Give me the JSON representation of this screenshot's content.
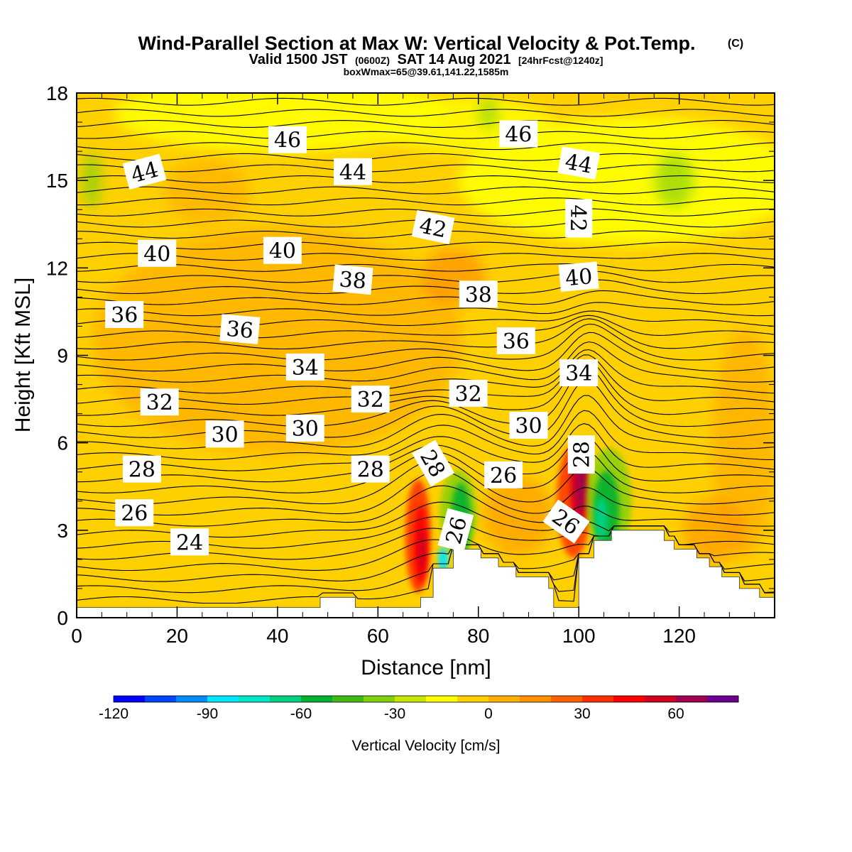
{
  "header": {
    "title": "Wind-Parallel Section at Max W: Vertical Velocity & Pot.Temp.",
    "copyright": "(C)",
    "valid_line": "Valid 1500 JST",
    "valid_zulu": "(0600Z)",
    "valid_date": "SAT 14 Aug 2021",
    "forecast_info": "[24hrFcst@1240z]",
    "box_info": "boxWmax=65@39.61,141.22,1585m"
  },
  "chart_data": {
    "type": "heatmap",
    "xlabel": "Distance [nm]",
    "ylabel": "Height [Kft MSL]",
    "xlim": [
      0,
      139
    ],
    "ylim": [
      0,
      18
    ],
    "x_ticks": [
      0,
      20,
      40,
      60,
      80,
      100,
      120
    ],
    "y_ticks": [
      0,
      3,
      6,
      9,
      12,
      15,
      18
    ],
    "colorbar": {
      "title": "Vertical Velocity [cm/s]",
      "range": [
        -120,
        80
      ],
      "step": 10,
      "tick_values": [
        -120,
        -90,
        -60,
        -30,
        0,
        30,
        60
      ],
      "colors": [
        "#0000ff",
        "#0044ff",
        "#0088ff",
        "#00e6ff",
        "#00e6c8",
        "#00d080",
        "#00b030",
        "#40b818",
        "#80d010",
        "#c8e600",
        "#ffff00",
        "#ffd000",
        "#ffb000",
        "#ff9000",
        "#ff6000",
        "#ff3000",
        "#ff0000",
        "#d00020",
        "#a00050",
        "#6a0090"
      ]
    },
    "field_color_index": {
      "background": 11,
      "upper_level": 10,
      "warm_pockets": 12,
      "upslope_max": 18,
      "downslope_min": 5
    },
    "isentropes": {
      "variable": "Pot.Temp.",
      "label_values": [
        24,
        26,
        28,
        30,
        32,
        34,
        36,
        38,
        40,
        42,
        44,
        46
      ]
    },
    "contour_labels": [
      {
        "text": "46",
        "x": 42,
        "y": 16.4,
        "rotate": 0
      },
      {
        "text": "46",
        "x": 88,
        "y": 16.6,
        "rotate": 0
      },
      {
        "text": "44",
        "x": 13.5,
        "y": 15.3,
        "rotate": -15
      },
      {
        "text": "44",
        "x": 55,
        "y": 15.3,
        "rotate": 0
      },
      {
        "text": "44",
        "x": 100,
        "y": 15.6,
        "rotate": 10
      },
      {
        "text": "42",
        "x": 71,
        "y": 13.4,
        "rotate": 12
      },
      {
        "text": "42",
        "x": 100,
        "y": 13.7,
        "rotate": 90
      },
      {
        "text": "40",
        "x": 16,
        "y": 12.5,
        "rotate": 0
      },
      {
        "text": "40",
        "x": 41,
        "y": 12.6,
        "rotate": 0
      },
      {
        "text": "40",
        "x": 100,
        "y": 11.7,
        "rotate": -5
      },
      {
        "text": "38",
        "x": 55,
        "y": 11.6,
        "rotate": 5
      },
      {
        "text": "38",
        "x": 80,
        "y": 11.1,
        "rotate": 0
      },
      {
        "text": "36",
        "x": 9.5,
        "y": 10.4,
        "rotate": 0
      },
      {
        "text": "36",
        "x": 32.5,
        "y": 9.9,
        "rotate": 5
      },
      {
        "text": "36",
        "x": 87.5,
        "y": 9.5,
        "rotate": 0
      },
      {
        "text": "34",
        "x": 45.5,
        "y": 8.6,
        "rotate": 0
      },
      {
        "text": "34",
        "x": 100,
        "y": 8.4,
        "rotate": 0
      },
      {
        "text": "32",
        "x": 16.5,
        "y": 7.4,
        "rotate": 0
      },
      {
        "text": "32",
        "x": 58.5,
        "y": 7.5,
        "rotate": 0
      },
      {
        "text": "32",
        "x": 78,
        "y": 7.7,
        "rotate": 0
      },
      {
        "text": "30",
        "x": 29.5,
        "y": 6.3,
        "rotate": 0
      },
      {
        "text": "30",
        "x": 45.5,
        "y": 6.5,
        "rotate": 0
      },
      {
        "text": "30",
        "x": 90,
        "y": 6.6,
        "rotate": 0
      },
      {
        "text": "28",
        "x": 13,
        "y": 5.1,
        "rotate": 0
      },
      {
        "text": "28",
        "x": 58.5,
        "y": 5.1,
        "rotate": 0
      },
      {
        "text": "28",
        "x": 71,
        "y": 5.3,
        "rotate": 60
      },
      {
        "text": "28",
        "x": 100.5,
        "y": 5.6,
        "rotate": -90
      },
      {
        "text": "26",
        "x": 11.5,
        "y": 3.6,
        "rotate": 0
      },
      {
        "text": "26",
        "x": 85,
        "y": 4.9,
        "rotate": 0
      },
      {
        "text": "26",
        "x": 75.5,
        "y": 3.0,
        "rotate": -75
      },
      {
        "text": "26",
        "x": 97.5,
        "y": 3.3,
        "rotate": 35
      },
      {
        "text": "24",
        "x": 22.5,
        "y": 2.6,
        "rotate": 0
      }
    ],
    "terrain": [
      [
        0,
        0.35
      ],
      [
        48.5,
        0.35
      ],
      [
        48.5,
        0.7
      ],
      [
        55.5,
        0.7
      ],
      [
        55.5,
        0.35
      ],
      [
        68.5,
        0.35
      ],
      [
        68.5,
        0.7
      ],
      [
        71,
        0.7
      ],
      [
        71,
        1.7
      ],
      [
        75,
        1.7
      ],
      [
        75,
        2.35
      ],
      [
        80.5,
        2.35
      ],
      [
        80.5,
        2.05
      ],
      [
        84,
        2.05
      ],
      [
        84,
        1.75
      ],
      [
        87.5,
        1.75
      ],
      [
        87.5,
        1.4
      ],
      [
        94,
        1.4
      ],
      [
        94,
        1.0
      ],
      [
        95,
        1.0
      ],
      [
        95,
        0.35
      ],
      [
        100,
        0.35
      ],
      [
        100,
        2.05
      ],
      [
        103,
        2.05
      ],
      [
        103,
        2.65
      ],
      [
        106.5,
        2.65
      ],
      [
        106.5,
        3.0
      ],
      [
        117,
        3.0
      ],
      [
        117,
        2.65
      ],
      [
        119,
        2.65
      ],
      [
        119,
        2.35
      ],
      [
        123.5,
        2.35
      ],
      [
        123.5,
        2.05
      ],
      [
        126,
        2.05
      ],
      [
        126,
        1.75
      ],
      [
        128.5,
        1.75
      ],
      [
        128.5,
        1.4
      ],
      [
        132,
        1.4
      ],
      [
        132,
        1.0
      ],
      [
        136,
        1.0
      ],
      [
        136,
        0.7
      ],
      [
        139,
        0.7
      ]
    ]
  }
}
